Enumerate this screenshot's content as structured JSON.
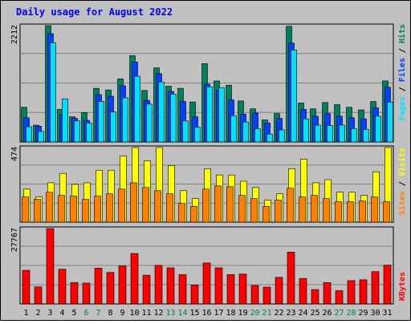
{
  "chart_data": {
    "type": "bar",
    "title": "Daily usage for August 2022",
    "categories": [
      "1",
      "2",
      "3",
      "4",
      "5",
      "6",
      "7",
      "8",
      "9",
      "10",
      "11",
      "12",
      "13",
      "14",
      "15",
      "16",
      "17",
      "18",
      "19",
      "20",
      "21",
      "22",
      "23",
      "24",
      "25",
      "26",
      "27",
      "28",
      "29",
      "30",
      "31"
    ],
    "weekend_days": [
      "6",
      "7",
      "13",
      "14",
      "20",
      "21",
      "27",
      "28"
    ],
    "panels": [
      {
        "id": "hits",
        "ymax_label": "2212",
        "ymax": 2212,
        "right_label": {
          "pages": "Pages",
          "files": "Files",
          "hits": "Hits",
          "sep": " / "
        },
        "series": [
          {
            "name": "Hits",
            "values": [
              660,
              320,
              2212,
              620,
              480,
              560,
              1020,
              990,
              1200,
              1640,
              980,
              1410,
              1060,
              1020,
              760,
              1490,
              1160,
              1080,
              780,
              630,
              420,
              540,
              2200,
              740,
              630,
              750,
              710,
              660,
              610,
              770,
              1160
            ]
          },
          {
            "name": "Files",
            "values": [
              460,
              300,
              2060,
              520,
              450,
              410,
              900,
              870,
              1070,
              1520,
              790,
              1300,
              960,
              770,
              480,
              1100,
              990,
              800,
              530,
              550,
              360,
              450,
              1880,
              620,
              490,
              540,
              490,
              460,
              440,
              650,
              1040
            ]
          },
          {
            "name": "Pages",
            "values": [
              290,
              200,
              1890,
              820,
              400,
              360,
              770,
              570,
              840,
              1250,
              720,
              1140,
              910,
              400,
              280,
              1050,
              1030,
              500,
              380,
              250,
              150,
              230,
              1750,
              440,
              320,
              310,
              320,
              250,
              240,
              490,
              760
            ]
          }
        ]
      },
      {
        "id": "visits",
        "ymax_label": "474",
        "ymax": 474,
        "right_label": {
          "sites": "Sites",
          "visits": "Visits",
          "sep": " / "
        },
        "series": [
          {
            "name": "Visits",
            "values": [
              210,
              160,
              250,
              310,
              240,
              250,
              330,
              330,
              420,
              474,
              390,
              474,
              360,
              200,
              150,
              340,
              300,
              300,
              260,
              220,
              140,
              180,
              340,
              400,
              250,
              270,
              190,
              190,
              170,
              320,
              474
            ]
          },
          {
            "name": "Sites",
            "values": [
              160,
              145,
              190,
              170,
              165,
              145,
              165,
              180,
              210,
              250,
              220,
              200,
              180,
              120,
              100,
              210,
              230,
              225,
              170,
              150,
              100,
              140,
              215,
              160,
              170,
              150,
              130,
              130,
              135,
              160,
              130
            ]
          }
        ]
      },
      {
        "id": "kbytes",
        "ymax_label": "27767",
        "ymax": 27767,
        "right_label": {
          "kbytes": "KBytes"
        },
        "series": [
          {
            "name": "KBytes",
            "values": [
              12400,
              6300,
              27767,
              12800,
              7900,
              7700,
              13200,
              11600,
              14000,
              18600,
              10600,
              14200,
              13300,
              10800,
              7000,
              15100,
              13300,
              10800,
              11000,
              6800,
              6200,
              9800,
              19100,
              9400,
              5300,
              7900,
              4900,
              8600,
              8900,
              11900,
              14300
            ]
          }
        ]
      }
    ],
    "colors": {
      "hits": "#00805c",
      "files": "#0040ff",
      "pages": "#00e0ff",
      "visits": "#ffff00",
      "sites": "#ff8000",
      "kbytes": "#ff0000",
      "weekday_label": "#000000",
      "weekend_label": "#00805c",
      "title": "#0000ff"
    }
  }
}
